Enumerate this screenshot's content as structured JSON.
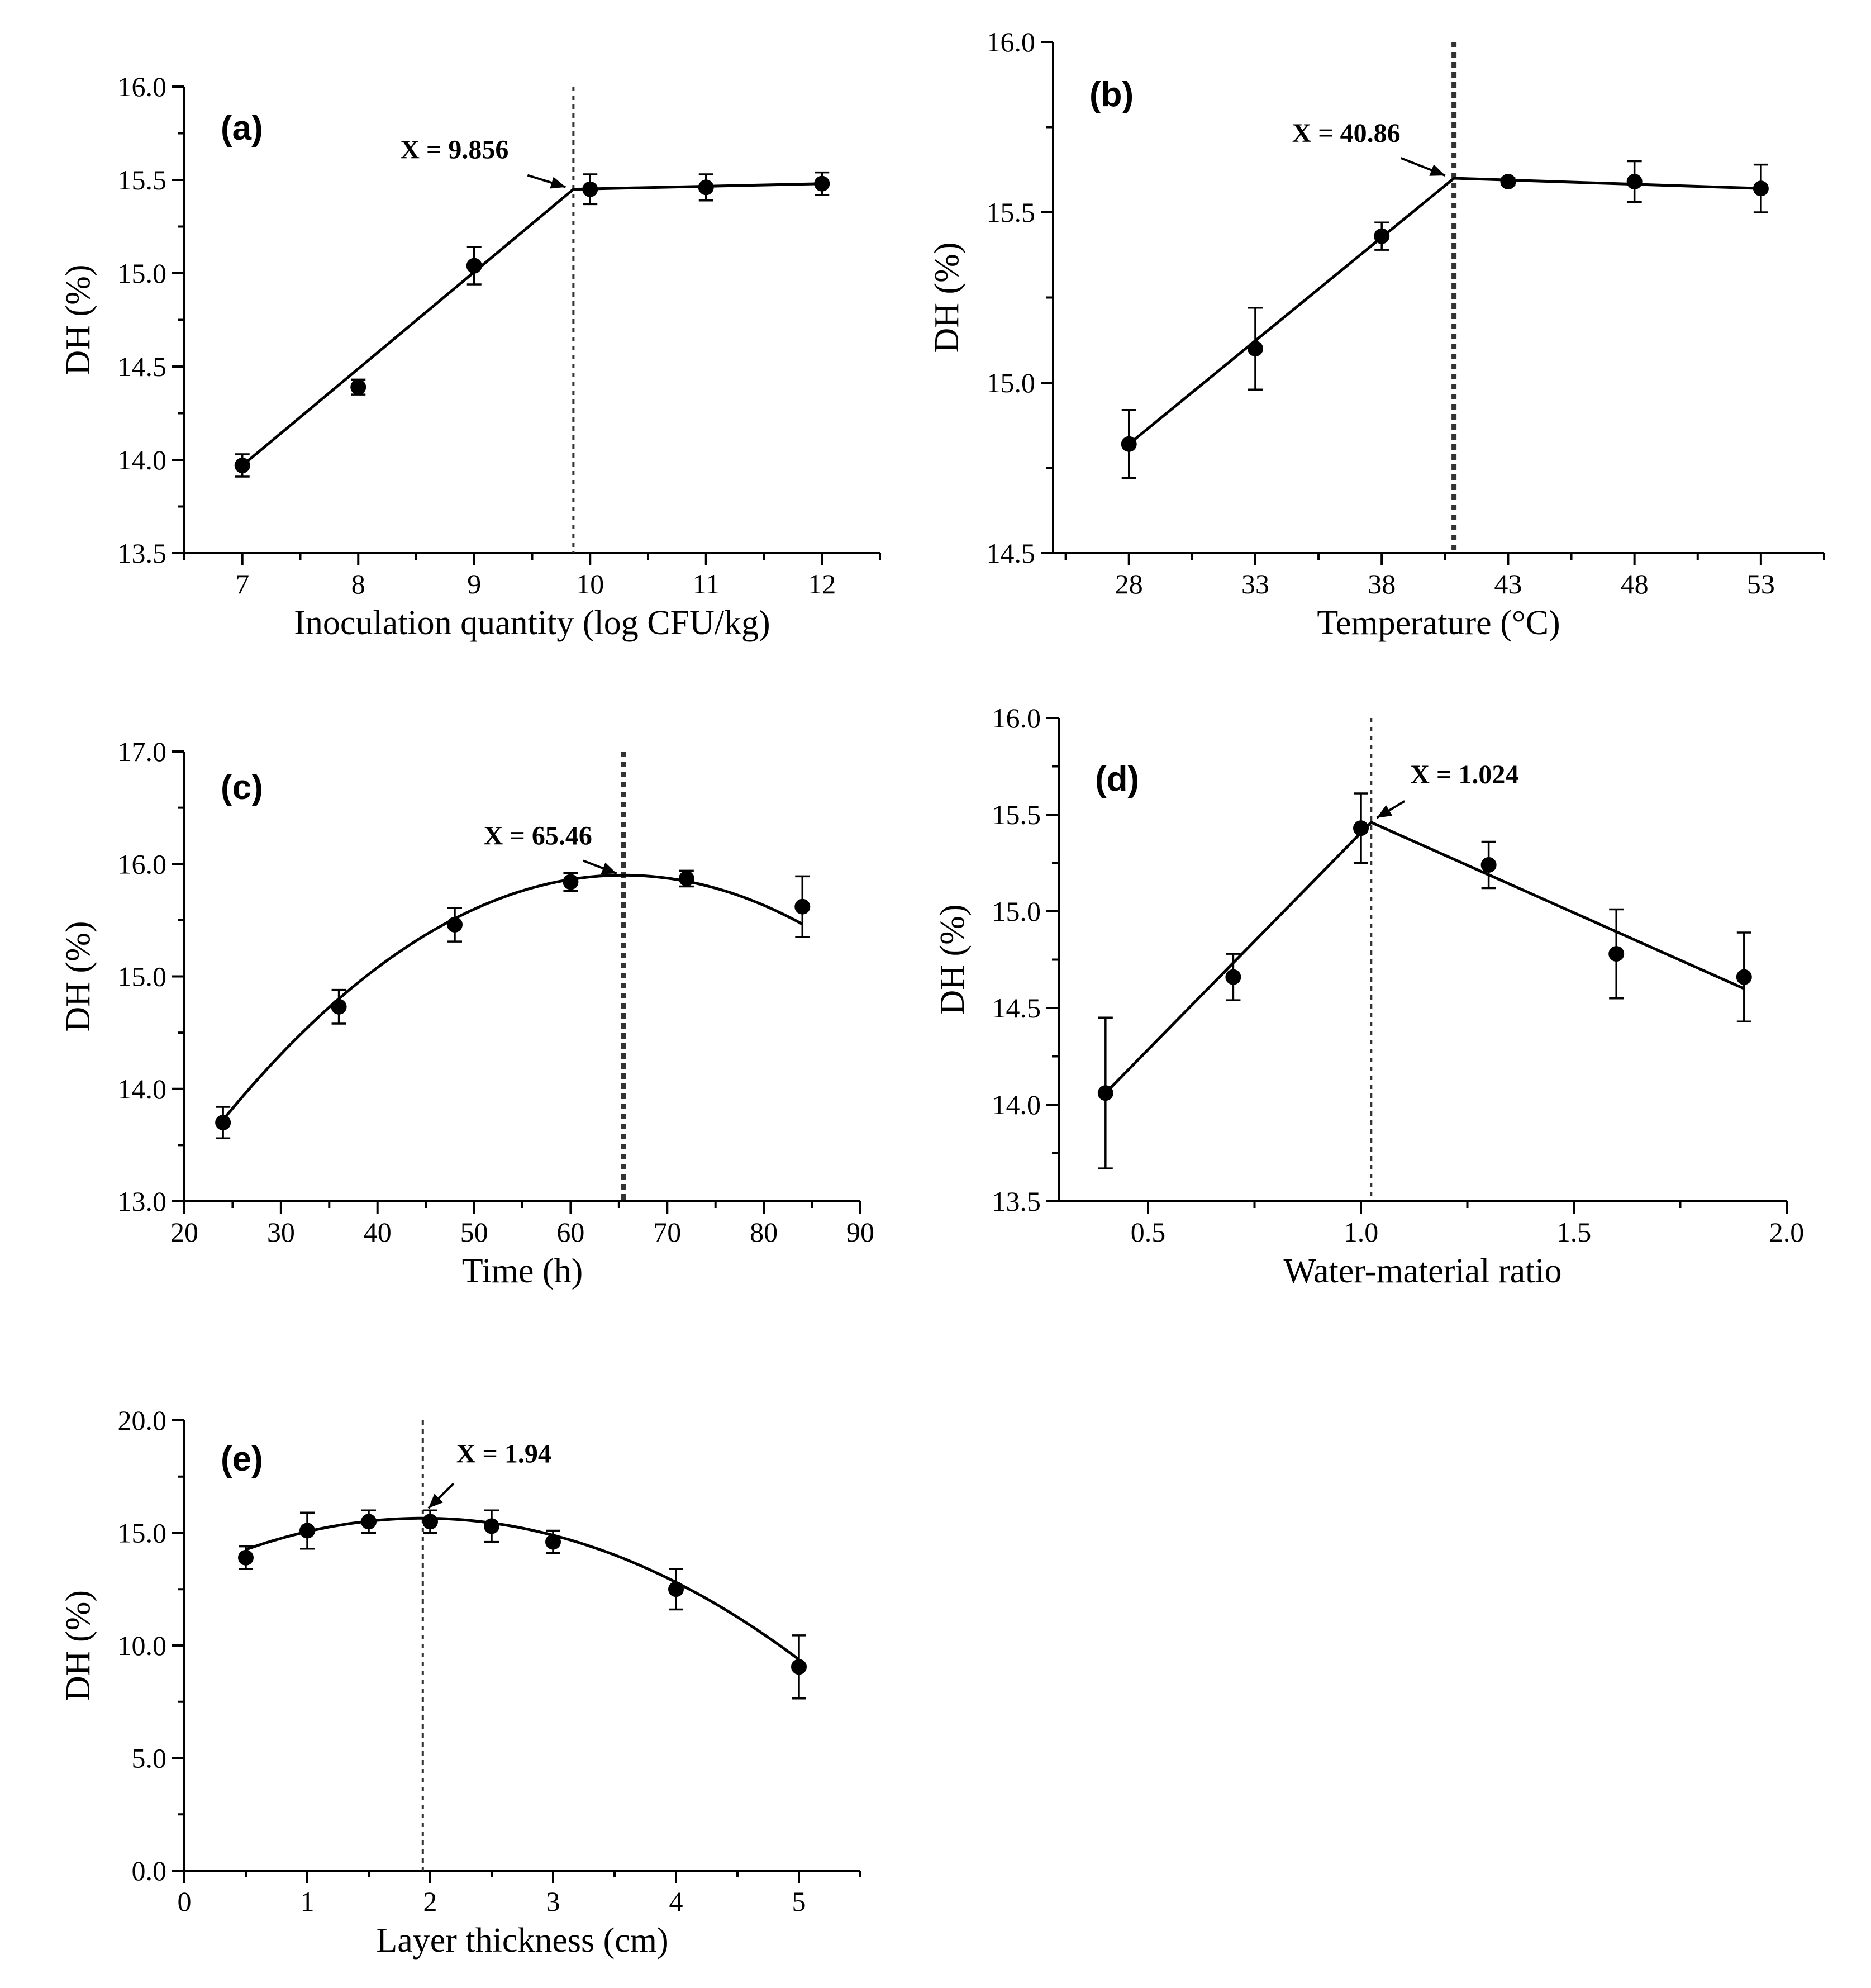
{
  "chart_data": [
    {
      "type": "line",
      "panel_label": "(a)",
      "title": "",
      "xlabel": "Inoculation quantity (log CFU/kg)",
      "ylabel": "DH (%)",
      "xlim": [
        6.5,
        12.5
      ],
      "ylim": [
        13.5,
        16.0
      ],
      "xticks": [
        7,
        8,
        9,
        10,
        11,
        12
      ],
      "xtick_labels": [
        "7",
        "8",
        "9",
        "10",
        "11",
        "12"
      ],
      "yticks": [
        13.5,
        14.0,
        14.5,
        15.0,
        15.5,
        16.0
      ],
      "ytick_labels": [
        "13.5",
        "14.0",
        "14.5",
        "15.0",
        "15.5",
        "16.0"
      ],
      "x": [
        7,
        8,
        9,
        10,
        11,
        12
      ],
      "y": [
        13.97,
        14.39,
        15.04,
        15.45,
        15.46,
        15.48
      ],
      "error": [
        0.06,
        0.04,
        0.1,
        0.08,
        0.07,
        0.06
      ],
      "fit": {
        "kind": "segmented",
        "points": [
          [
            7,
            13.97
          ],
          [
            9.856,
            15.45
          ],
          [
            12,
            15.48
          ]
        ]
      },
      "vline": 9.856,
      "vline_style": "thin",
      "annotation": {
        "text": "X = 9.856",
        "x": 9.856,
        "y": 15.45
      }
    },
    {
      "type": "line",
      "panel_label": "(b)",
      "title": "",
      "xlabel": "Temperature (°C)",
      "ylabel": "DH (%)",
      "xlim": [
        25,
        55.5
      ],
      "ylim": [
        14.5,
        16.0
      ],
      "xticks": [
        28,
        33,
        38,
        43,
        48,
        53
      ],
      "xtick_labels": [
        "28",
        "33",
        "38",
        "43",
        "48",
        "53"
      ],
      "yticks": [
        14.5,
        15.0,
        15.5,
        16.0
      ],
      "ytick_labels": [
        "14.5",
        "15.0",
        "15.5",
        "16.0"
      ],
      "x": [
        28,
        33,
        38,
        43,
        48,
        53
      ],
      "y": [
        14.82,
        15.1,
        15.43,
        15.59,
        15.59,
        15.57
      ],
      "error": [
        0.1,
        0.12,
        0.04,
        0.01,
        0.06,
        0.07
      ],
      "fit": {
        "kind": "segmented",
        "points": [
          [
            28,
            14.82
          ],
          [
            40.86,
            15.6
          ],
          [
            53,
            15.57
          ]
        ]
      },
      "vline": 40.86,
      "vline_style": "thick",
      "annotation": {
        "text": "X = 40.86",
        "x": 40.86,
        "y": 15.6
      }
    },
    {
      "type": "line",
      "panel_label": "(c)",
      "title": "",
      "xlabel": "Time (h)",
      "ylabel": "DH (%)",
      "xlim": [
        20,
        90
      ],
      "ylim": [
        13.0,
        17.0
      ],
      "xticks": [
        20,
        30,
        40,
        50,
        60,
        70,
        80,
        90
      ],
      "xtick_labels": [
        "20",
        "30",
        "40",
        "50",
        "60",
        "70",
        "80",
        "90"
      ],
      "yticks": [
        13.0,
        14.0,
        15.0,
        16.0,
        17.0
      ],
      "ytick_labels": [
        "13.0",
        "14.0",
        "15.0",
        "16.0",
        "17.0"
      ],
      "x": [
        24,
        36,
        48,
        60,
        72,
        84
      ],
      "y": [
        13.7,
        14.73,
        15.46,
        15.84,
        15.87,
        15.62
      ],
      "error": [
        0.14,
        0.15,
        0.15,
        0.08,
        0.07,
        0.27
      ],
      "fit": {
        "kind": "quadratic",
        "vertex_x": 65.46,
        "vertex_y": 15.9,
        "a": -0.001266,
        "x_range": [
          24,
          84
        ]
      },
      "vline": 65.46,
      "vline_style": "thick",
      "annotation": {
        "text": "X = 65.46",
        "x": 65.46,
        "y": 15.9
      }
    },
    {
      "type": "line",
      "panel_label": "(d)",
      "title": "",
      "xlabel": "Water-material ratio",
      "ylabel": "DH (%)",
      "xlim": [
        0.29,
        2.0
      ],
      "ylim": [
        13.5,
        16.0
      ],
      "xticks": [
        0.5,
        1.0,
        1.5,
        2.0
      ],
      "xtick_labels": [
        "0.5",
        "1.0",
        "1.5",
        "2.0"
      ],
      "yticks": [
        13.5,
        14.0,
        14.5,
        15.0,
        15.5,
        16.0
      ],
      "ytick_labels": [
        "13.5",
        "14.0",
        "14.5",
        "15.0",
        "15.5",
        "16.0"
      ],
      "x": [
        0.4,
        0.7,
        1.0,
        1.3,
        1.6,
        1.9
      ],
      "y": [
        14.06,
        14.66,
        15.43,
        15.24,
        14.78,
        14.66
      ],
      "error": [
        0.39,
        0.12,
        0.18,
        0.12,
        0.23,
        0.23
      ],
      "fit": {
        "kind": "segmented",
        "points": [
          [
            0.4,
            14.06
          ],
          [
            1.024,
            15.46
          ],
          [
            1.9,
            14.6
          ]
        ]
      },
      "vline": 1.024,
      "vline_style": "thin",
      "annotation": {
        "text": "X = 1.024",
        "x": 1.024,
        "y": 15.46
      }
    },
    {
      "type": "line",
      "panel_label": "(e)",
      "title": "",
      "xlabel": "Layer thickness (cm)",
      "ylabel": "DH (%)",
      "xlim": [
        0,
        5.5
      ],
      "ylim": [
        0.0,
        20.0
      ],
      "xticks": [
        0,
        1,
        2,
        3,
        4,
        5
      ],
      "xtick_labels": [
        "0",
        "1",
        "2",
        "3",
        "4",
        "5"
      ],
      "yticks": [
        0.0,
        5.0,
        10.0,
        15.0,
        20.0
      ],
      "ytick_labels": [
        "0.0",
        "5.0",
        "10.0",
        "15.0",
        "20.0"
      ],
      "x": [
        0.5,
        1.0,
        1.5,
        2.0,
        2.5,
        3.0,
        4.0,
        5.0
      ],
      "y": [
        13.9,
        15.1,
        15.5,
        15.5,
        15.3,
        14.6,
        12.5,
        9.05
      ],
      "error": [
        0.5,
        0.8,
        0.5,
        0.5,
        0.7,
        0.5,
        0.9,
        1.4
      ],
      "fit": {
        "kind": "quadratic",
        "vertex_x": 1.94,
        "vertex_y": 15.65,
        "a": -0.67,
        "x_range": [
          0.5,
          5.0
        ]
      },
      "vline": 1.94,
      "vline_style": "thin",
      "annotation": {
        "text": "X = 1.94",
        "x": 1.94,
        "y": 15.65
      }
    }
  ]
}
